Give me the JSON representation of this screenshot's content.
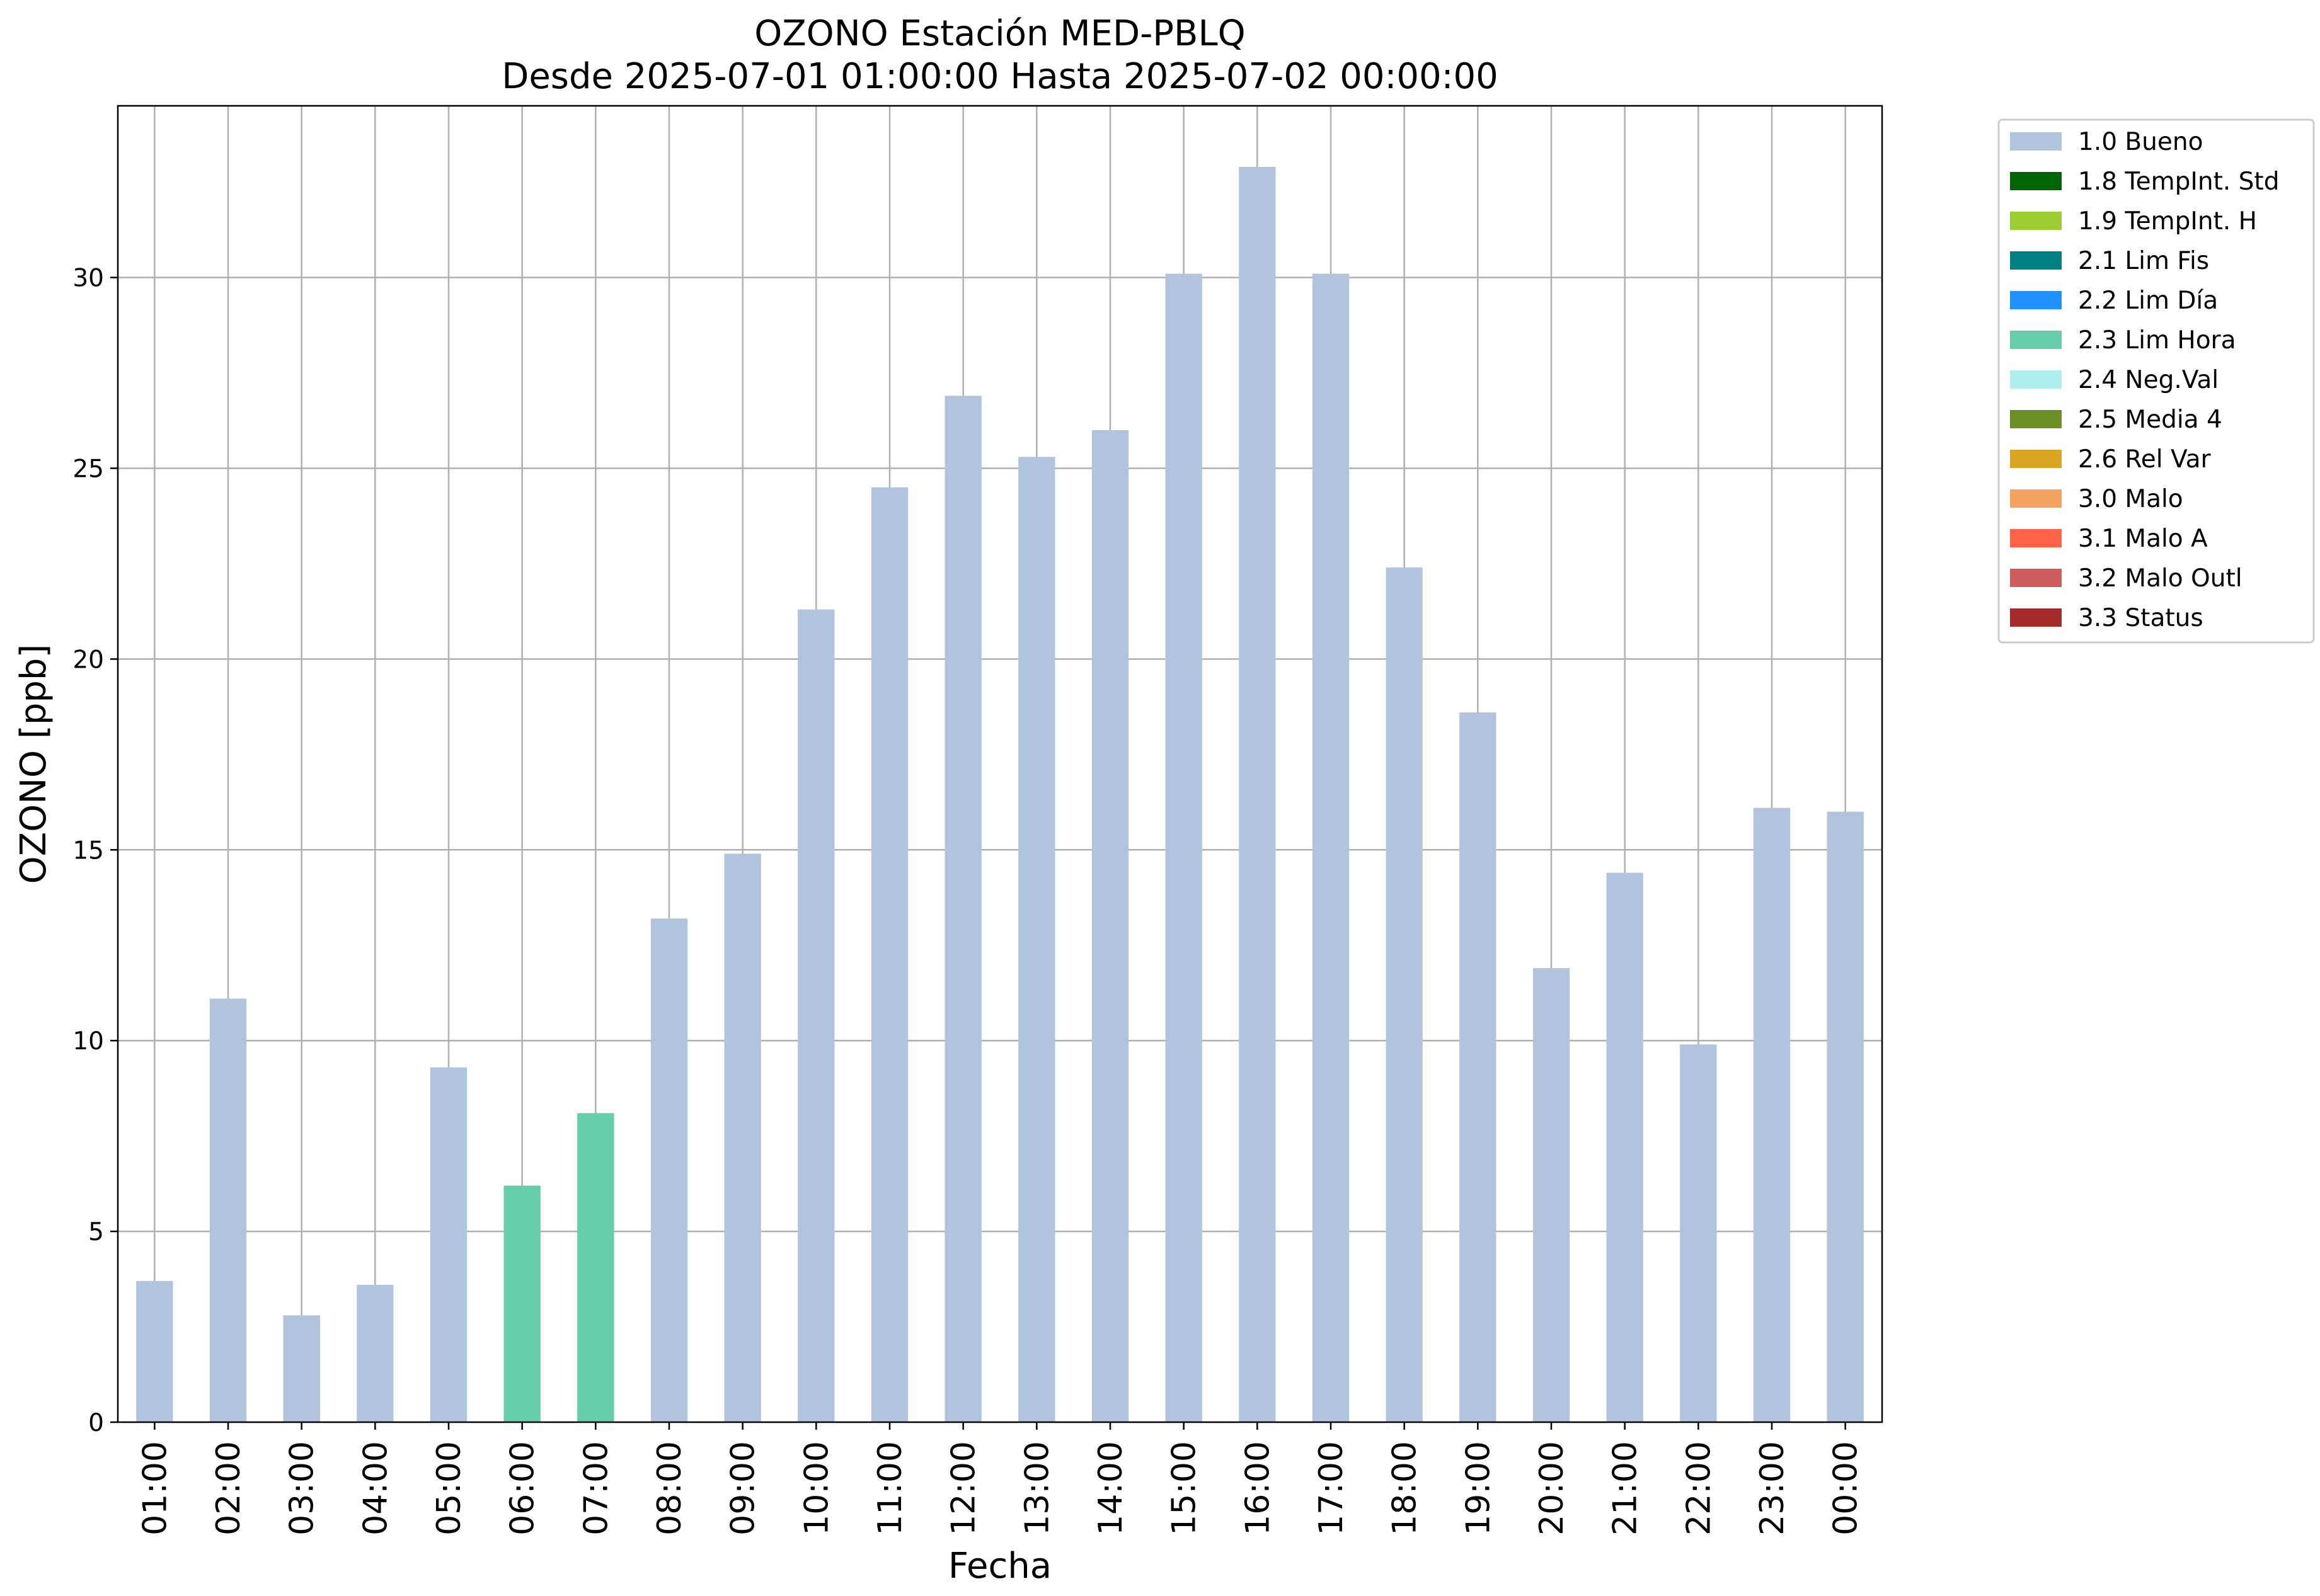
{
  "chart_data": {
    "type": "bar",
    "title": "OZONO Estación MED-PBLQ",
    "subtitle": "Desde 2025-07-01 01:00:00 Hasta 2025-07-02 00:00:00",
    "xlabel": "Fecha",
    "ylabel": "OZONO [ppb]",
    "ylim": [
      0,
      34.5
    ],
    "yticks": [
      0,
      5,
      10,
      15,
      20,
      25,
      30
    ],
    "grid": true,
    "legend_position": "outside-top-right",
    "categories": [
      "01:00",
      "02:00",
      "03:00",
      "04:00",
      "05:00",
      "06:00",
      "07:00",
      "08:00",
      "09:00",
      "10:00",
      "11:00",
      "12:00",
      "13:00",
      "14:00",
      "15:00",
      "16:00",
      "17:00",
      "18:00",
      "19:00",
      "20:00",
      "21:00",
      "22:00",
      "23:00",
      "00:00"
    ],
    "values": [
      3.7,
      11.1,
      2.8,
      3.6,
      9.3,
      6.2,
      8.1,
      13.2,
      14.9,
      21.3,
      24.5,
      26.9,
      25.3,
      26.0,
      30.1,
      32.9,
      30.1,
      22.4,
      18.6,
      11.9,
      14.4,
      9.9,
      16.1,
      16.0
    ],
    "flags": [
      "1.0 Bueno",
      "1.0 Bueno",
      "1.0 Bueno",
      "1.0 Bueno",
      "1.0 Bueno",
      "2.3 Lim Hora",
      "2.3 Lim Hora",
      "1.0 Bueno",
      "1.0 Bueno",
      "1.0 Bueno",
      "1.0 Bueno",
      "1.0 Bueno",
      "1.0 Bueno",
      "1.0 Bueno",
      "1.0 Bueno",
      "1.0 Bueno",
      "1.0 Bueno",
      "1.0 Bueno",
      "1.0 Bueno",
      "1.0 Bueno",
      "1.0 Bueno",
      "1.0 Bueno",
      "1.0 Bueno",
      "1.0 Bueno"
    ],
    "legend": [
      {
        "label": "1.0 Bueno",
        "color": "#b0c4de"
      },
      {
        "label": "1.8 TempInt. Std",
        "color": "#006400"
      },
      {
        "label": "1.9 TempInt. H",
        "color": "#9acd32"
      },
      {
        "label": "2.1 Lim Fis",
        "color": "#008080"
      },
      {
        "label": "2.2 Lim Día",
        "color": "#1e90ff"
      },
      {
        "label": "2.3 Lim Hora",
        "color": "#66cdaa"
      },
      {
        "label": "2.4 Neg.Val",
        "color": "#afeeee"
      },
      {
        "label": "2.5 Media 4",
        "color": "#6b8e23"
      },
      {
        "label": "2.6 Rel Var",
        "color": "#daa520"
      },
      {
        "label": "3.0 Malo",
        "color": "#f4a460"
      },
      {
        "label": "3.1 Malo A",
        "color": "#ff6347"
      },
      {
        "label": "3.2 Malo Outl",
        "color": "#cd5c5c"
      },
      {
        "label": "3.3 Status",
        "color": "#a52a2a"
      }
    ]
  }
}
